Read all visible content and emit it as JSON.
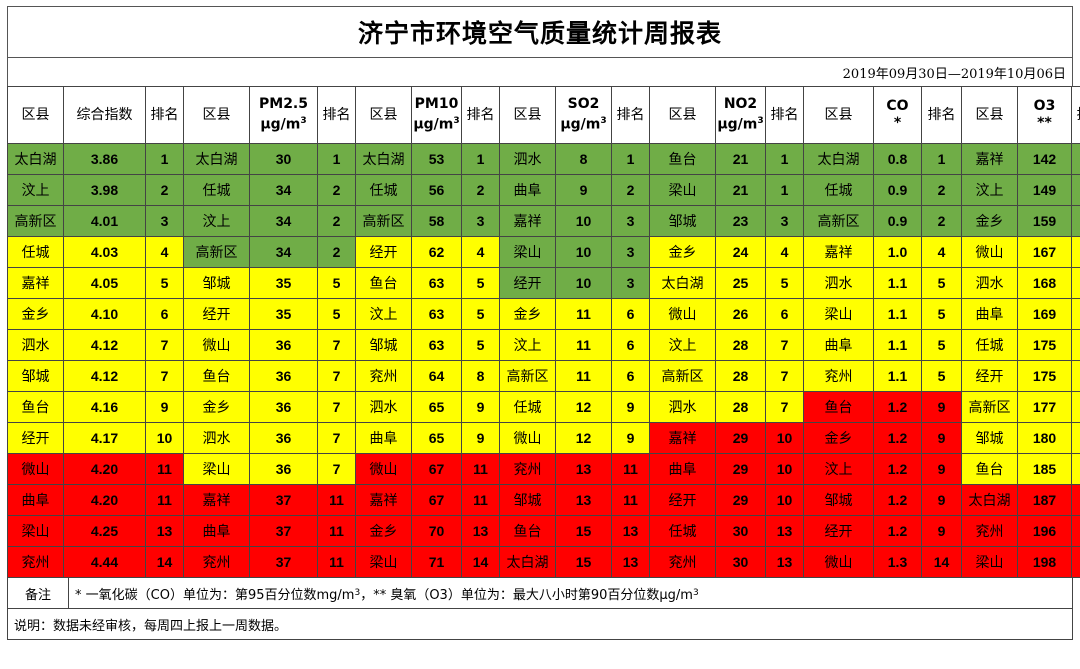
{
  "title": "济宁市环境空气质量统计周报表",
  "date_range": "2019年09月30日—2019年10月06日",
  "headers": {
    "county": "区县",
    "index": "综合指数",
    "rank": "排名",
    "pm25_name": "PM2.5",
    "pm25_unit": "μg/m",
    "pm10_name": "PM10",
    "pm10_unit": "μg/m",
    "so2_name": "SO2",
    "so2_unit": "μg/m",
    "no2_name": "NO2",
    "no2_unit": "μg/m",
    "co_name": "CO",
    "co_unit": "*",
    "o3_name": "O3",
    "o3_unit": "**",
    "cubed": "3"
  },
  "colors": {
    "green": "#70ad47",
    "yellow": "#ffff00",
    "red": "#ff0000"
  },
  "groups": [
    {
      "key": "index",
      "rows": [
        [
          "太白湖",
          "3.86",
          "1",
          "g"
        ],
        [
          "汶上",
          "3.98",
          "2",
          "g"
        ],
        [
          "高新区",
          "4.01",
          "3",
          "g"
        ],
        [
          "任城",
          "4.03",
          "4",
          "y"
        ],
        [
          "嘉祥",
          "4.05",
          "5",
          "y"
        ],
        [
          "金乡",
          "4.10",
          "6",
          "y"
        ],
        [
          "泗水",
          "4.12",
          "7",
          "y"
        ],
        [
          "邹城",
          "4.12",
          "7",
          "y"
        ],
        [
          "鱼台",
          "4.16",
          "9",
          "y"
        ],
        [
          "经开",
          "4.17",
          "10",
          "y"
        ],
        [
          "微山",
          "4.20",
          "11",
          "r"
        ],
        [
          "曲阜",
          "4.20",
          "11",
          "r"
        ],
        [
          "梁山",
          "4.25",
          "13",
          "r"
        ],
        [
          "兖州",
          "4.44",
          "14",
          "r"
        ]
      ]
    },
    {
      "key": "pm25",
      "rows": [
        [
          "太白湖",
          "30",
          "1",
          "g"
        ],
        [
          "任城",
          "34",
          "2",
          "g"
        ],
        [
          "汶上",
          "34",
          "2",
          "g"
        ],
        [
          "高新区",
          "34",
          "2",
          "g"
        ],
        [
          "邹城",
          "35",
          "5",
          "y"
        ],
        [
          "经开",
          "35",
          "5",
          "y"
        ],
        [
          "微山",
          "36",
          "7",
          "y"
        ],
        [
          "鱼台",
          "36",
          "7",
          "y"
        ],
        [
          "金乡",
          "36",
          "7",
          "y"
        ],
        [
          "泗水",
          "36",
          "7",
          "y"
        ],
        [
          "梁山",
          "36",
          "7",
          "y"
        ],
        [
          "嘉祥",
          "37",
          "11",
          "r"
        ],
        [
          "曲阜",
          "37",
          "11",
          "r"
        ],
        [
          "兖州",
          "37",
          "11",
          "r"
        ]
      ]
    },
    {
      "key": "pm10",
      "rows": [
        [
          "太白湖",
          "53",
          "1",
          "g"
        ],
        [
          "任城",
          "56",
          "2",
          "g"
        ],
        [
          "高新区",
          "58",
          "3",
          "g"
        ],
        [
          "经开",
          "62",
          "4",
          "y"
        ],
        [
          "鱼台",
          "63",
          "5",
          "y"
        ],
        [
          "汶上",
          "63",
          "5",
          "y"
        ],
        [
          "邹城",
          "63",
          "5",
          "y"
        ],
        [
          "兖州",
          "64",
          "8",
          "y"
        ],
        [
          "泗水",
          "65",
          "9",
          "y"
        ],
        [
          "曲阜",
          "65",
          "9",
          "y"
        ],
        [
          "微山",
          "67",
          "11",
          "r"
        ],
        [
          "嘉祥",
          "67",
          "11",
          "r"
        ],
        [
          "金乡",
          "70",
          "13",
          "r"
        ],
        [
          "梁山",
          "71",
          "14",
          "r"
        ]
      ]
    },
    {
      "key": "so2",
      "rows": [
        [
          "泗水",
          "8",
          "1",
          "g"
        ],
        [
          "曲阜",
          "9",
          "2",
          "g"
        ],
        [
          "嘉祥",
          "10",
          "3",
          "g"
        ],
        [
          "梁山",
          "10",
          "3",
          "g"
        ],
        [
          "经开",
          "10",
          "3",
          "g"
        ],
        [
          "金乡",
          "11",
          "6",
          "y"
        ],
        [
          "汶上",
          "11",
          "6",
          "y"
        ],
        [
          "高新区",
          "11",
          "6",
          "y"
        ],
        [
          "任城",
          "12",
          "9",
          "y"
        ],
        [
          "微山",
          "12",
          "9",
          "y"
        ],
        [
          "兖州",
          "13",
          "11",
          "r"
        ],
        [
          "邹城",
          "13",
          "11",
          "r"
        ],
        [
          "鱼台",
          "15",
          "13",
          "r"
        ],
        [
          "太白湖",
          "15",
          "13",
          "r"
        ]
      ]
    },
    {
      "key": "no2",
      "rows": [
        [
          "鱼台",
          "21",
          "1",
          "g"
        ],
        [
          "梁山",
          "21",
          "1",
          "g"
        ],
        [
          "邹城",
          "23",
          "3",
          "g"
        ],
        [
          "金乡",
          "24",
          "4",
          "y"
        ],
        [
          "太白湖",
          "25",
          "5",
          "y"
        ],
        [
          "微山",
          "26",
          "6",
          "y"
        ],
        [
          "汶上",
          "28",
          "7",
          "y"
        ],
        [
          "高新区",
          "28",
          "7",
          "y"
        ],
        [
          "泗水",
          "28",
          "7",
          "y"
        ],
        [
          "嘉祥",
          "29",
          "10",
          "r"
        ],
        [
          "曲阜",
          "29",
          "10",
          "r"
        ],
        [
          "经开",
          "29",
          "10",
          "r"
        ],
        [
          "任城",
          "30",
          "13",
          "r"
        ],
        [
          "兖州",
          "30",
          "13",
          "r"
        ]
      ]
    },
    {
      "key": "co",
      "rows": [
        [
          "太白湖",
          "0.8",
          "1",
          "g"
        ],
        [
          "任城",
          "0.9",
          "2",
          "g"
        ],
        [
          "高新区",
          "0.9",
          "2",
          "g"
        ],
        [
          "嘉祥",
          "1.0",
          "4",
          "y"
        ],
        [
          "泗水",
          "1.1",
          "5",
          "y"
        ],
        [
          "梁山",
          "1.1",
          "5",
          "y"
        ],
        [
          "曲阜",
          "1.1",
          "5",
          "y"
        ],
        [
          "兖州",
          "1.1",
          "5",
          "y"
        ],
        [
          "鱼台",
          "1.2",
          "9",
          "r"
        ],
        [
          "金乡",
          "1.2",
          "9",
          "r"
        ],
        [
          "汶上",
          "1.2",
          "9",
          "r"
        ],
        [
          "邹城",
          "1.2",
          "9",
          "r"
        ],
        [
          "经开",
          "1.2",
          "9",
          "r"
        ],
        [
          "微山",
          "1.3",
          "14",
          "r"
        ]
      ]
    },
    {
      "key": "o3",
      "rows": [
        [
          "嘉祥",
          "142",
          "1",
          "g"
        ],
        [
          "汶上",
          "149",
          "2",
          "g"
        ],
        [
          "金乡",
          "159",
          "3",
          "g"
        ],
        [
          "微山",
          "167",
          "4",
          "y"
        ],
        [
          "泗水",
          "168",
          "5",
          "y"
        ],
        [
          "曲阜",
          "169",
          "6",
          "y"
        ],
        [
          "任城",
          "175",
          "7",
          "y"
        ],
        [
          "经开",
          "175",
          "7",
          "y"
        ],
        [
          "高新区",
          "177",
          "9",
          "y"
        ],
        [
          "邹城",
          "180",
          "10",
          "y"
        ],
        [
          "鱼台",
          "185",
          "11",
          "y"
        ],
        [
          "太白湖",
          "187",
          "12",
          "r"
        ],
        [
          "兖州",
          "196",
          "13",
          "r"
        ],
        [
          "梁山",
          "198",
          "14",
          "r"
        ]
      ]
    }
  ],
  "remark_label": "备注",
  "remark_text_1": "* 一氧化碳（CO）单位为：第95百分位数mg/m",
  "remark_sup": "3",
  "remark_text_2": "，** 臭氧（O3）单位为：最大八小时第90百分位数μg/m",
  "note": "说明：数据未经审核，每周四上报上一周数据。"
}
